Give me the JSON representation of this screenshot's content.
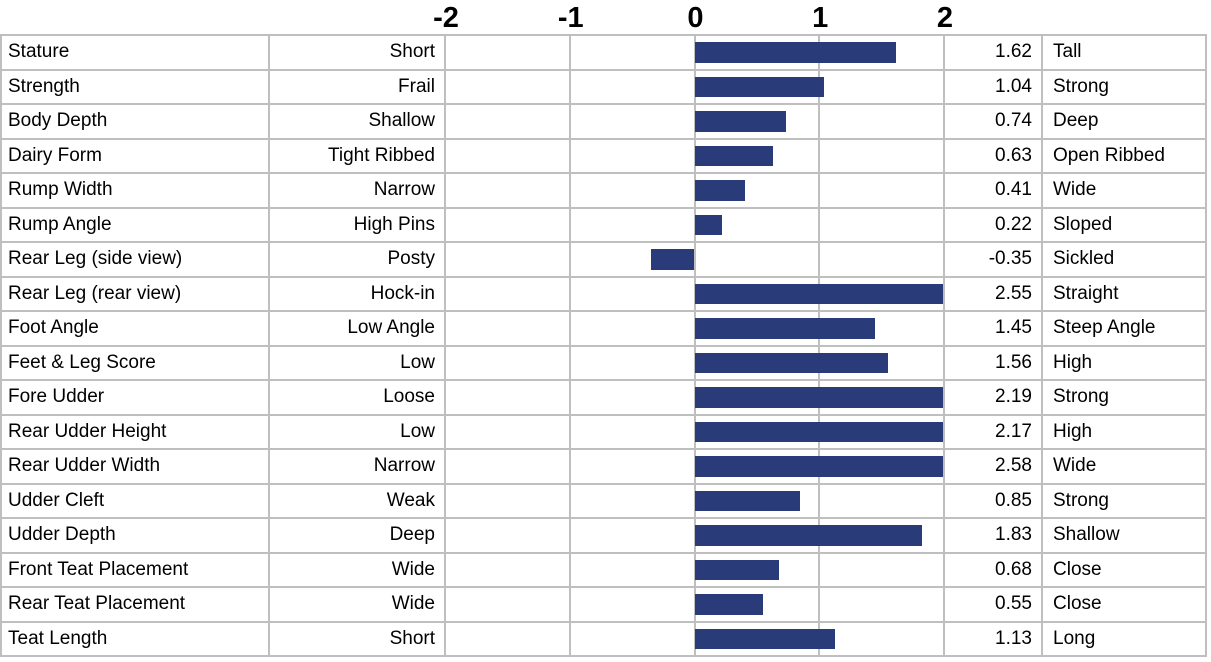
{
  "chart_data": {
    "type": "bar",
    "orientation": "horizontal",
    "title": "",
    "xlabel": "",
    "ylabel": "",
    "axis": {
      "min": -2,
      "max": 2,
      "ticks": [
        -2,
        -1,
        0,
        1,
        2
      ],
      "tick_labels": [
        "-2",
        "-1",
        "0",
        "1",
        "2"
      ]
    },
    "grid": "on",
    "bar_color": "#2a3b79",
    "grid_color": "#bfbfbf",
    "rows": [
      {
        "trait": "Stature",
        "low": "Short",
        "value": 1.62,
        "value_label": "1.62",
        "high": "Tall"
      },
      {
        "trait": "Strength",
        "low": "Frail",
        "value": 1.04,
        "value_label": "1.04",
        "high": "Strong"
      },
      {
        "trait": "Body Depth",
        "low": "Shallow",
        "value": 0.74,
        "value_label": "0.74",
        "high": "Deep"
      },
      {
        "trait": "Dairy Form",
        "low": "Tight Ribbed",
        "value": 0.63,
        "value_label": "0.63",
        "high": "Open Ribbed"
      },
      {
        "trait": "Rump Width",
        "low": "Narrow",
        "value": 0.41,
        "value_label": "0.41",
        "high": "Wide"
      },
      {
        "trait": "Rump Angle",
        "low": "High Pins",
        "value": 0.22,
        "value_label": "0.22",
        "high": "Sloped"
      },
      {
        "trait": "Rear Leg (side view)",
        "low": "Posty",
        "value": -0.35,
        "value_label": "-0.35",
        "high": "Sickled"
      },
      {
        "trait": "Rear Leg (rear view)",
        "low": "Hock-in",
        "value": 2.55,
        "value_label": "2.55",
        "high": "Straight"
      },
      {
        "trait": "Foot Angle",
        "low": "Low Angle",
        "value": 1.45,
        "value_label": "1.45",
        "high": "Steep Angle"
      },
      {
        "trait": "Feet & Leg Score",
        "low": "Low",
        "value": 1.56,
        "value_label": "1.56",
        "high": "High"
      },
      {
        "trait": "Fore Udder",
        "low": "Loose",
        "value": 2.19,
        "value_label": "2.19",
        "high": "Strong"
      },
      {
        "trait": "Rear Udder Height",
        "low": "Low",
        "value": 2.17,
        "value_label": "2.17",
        "high": "High"
      },
      {
        "trait": "Rear Udder Width",
        "low": "Narrow",
        "value": 2.58,
        "value_label": "2.58",
        "high": "Wide"
      },
      {
        "trait": "Udder Cleft",
        "low": "Weak",
        "value": 0.85,
        "value_label": "0.85",
        "high": "Strong"
      },
      {
        "trait": "Udder Depth",
        "low": "Deep",
        "value": 1.83,
        "value_label": "1.83",
        "high": "Shallow"
      },
      {
        "trait": "Front Teat Placement",
        "low": "Wide",
        "value": 0.68,
        "value_label": "0.68",
        "high": "Close"
      },
      {
        "trait": "Rear Teat Placement",
        "low": "Wide",
        "value": 0.55,
        "value_label": "0.55",
        "high": "Close"
      },
      {
        "trait": "Teat Length",
        "low": "Short",
        "value": 1.13,
        "value_label": "1.13",
        "high": "Long"
      }
    ]
  },
  "colors": {
    "bar": "#2a3b79",
    "grid": "#bfbfbf",
    "text": "#000000",
    "background": "#ffffff"
  }
}
